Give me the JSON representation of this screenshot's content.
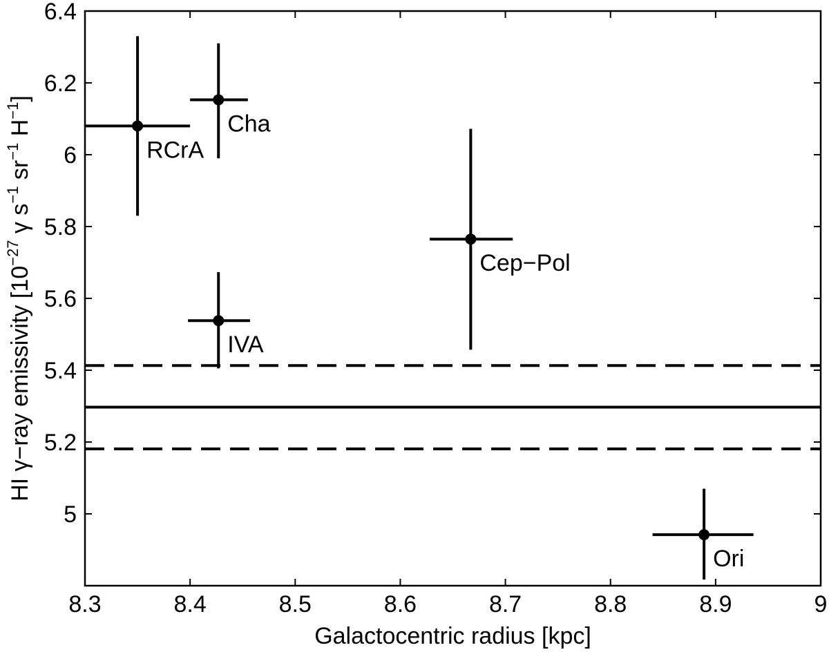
{
  "chart_data": {
    "type": "scatter",
    "title": "",
    "xlabel": "Galactocentric radius  [kpc]",
    "ylabel_prefix": "HI γ−ray emissivity  [10",
    "ylabel_exp1": "−27",
    "ylabel_mid1": " γ s",
    "ylabel_exp2": "−1",
    "ylabel_mid2": " sr",
    "ylabel_exp3": "−1",
    "ylabel_mid3": " H",
    "ylabel_exp4": "−1",
    "ylabel_suffix": "]",
    "xlim": [
      8.3,
      9.0
    ],
    "ylim": [
      4.8,
      6.4
    ],
    "xticks": [
      8.3,
      8.4,
      8.5,
      8.6,
      8.7,
      8.8,
      8.9,
      9.0
    ],
    "xtick_labels": [
      "8.3",
      "8.4",
      "8.5",
      "8.6",
      "8.7",
      "8.8",
      "8.9",
      "9"
    ],
    "yticks": [
      5.0,
      5.2,
      5.4,
      5.6,
      5.8,
      6.0,
      6.2,
      6.4
    ],
    "ytick_labels": [
      "5",
      "5.2",
      "5.4",
      "5.6",
      "5.8",
      "6",
      "6.2",
      "6.4"
    ],
    "grid": false,
    "points": [
      {
        "label": "RCrA",
        "x": 8.35,
        "y": 6.08,
        "xerr": [
          8.3,
          8.4
        ],
        "yerr": [
          5.83,
          6.33
        ]
      },
      {
        "label": "Cha",
        "x": 8.427,
        "y": 6.153,
        "xerr": [
          8.4,
          8.455
        ],
        "yerr": [
          5.99,
          6.31
        ]
      },
      {
        "label": "Cep−Pol",
        "x": 8.667,
        "y": 5.765,
        "xerr": [
          8.628,
          8.707
        ],
        "yerr": [
          5.457,
          6.072
        ]
      },
      {
        "label": "IVA",
        "x": 8.427,
        "y": 5.538,
        "xerr": [
          8.398,
          8.457
        ],
        "yerr": [
          5.405,
          5.673
        ]
      },
      {
        "label": "Ori",
        "x": 8.889,
        "y": 4.942,
        "xerr": [
          8.84,
          8.936
        ],
        "yerr": [
          4.817,
          5.07
        ]
      }
    ],
    "reference_lines": [
      {
        "name": "mean",
        "y": 5.297,
        "style": "solid"
      },
      {
        "name": "upper",
        "y": 5.413,
        "style": "dashed"
      },
      {
        "name": "lower",
        "y": 5.181,
        "style": "dashed"
      }
    ]
  }
}
